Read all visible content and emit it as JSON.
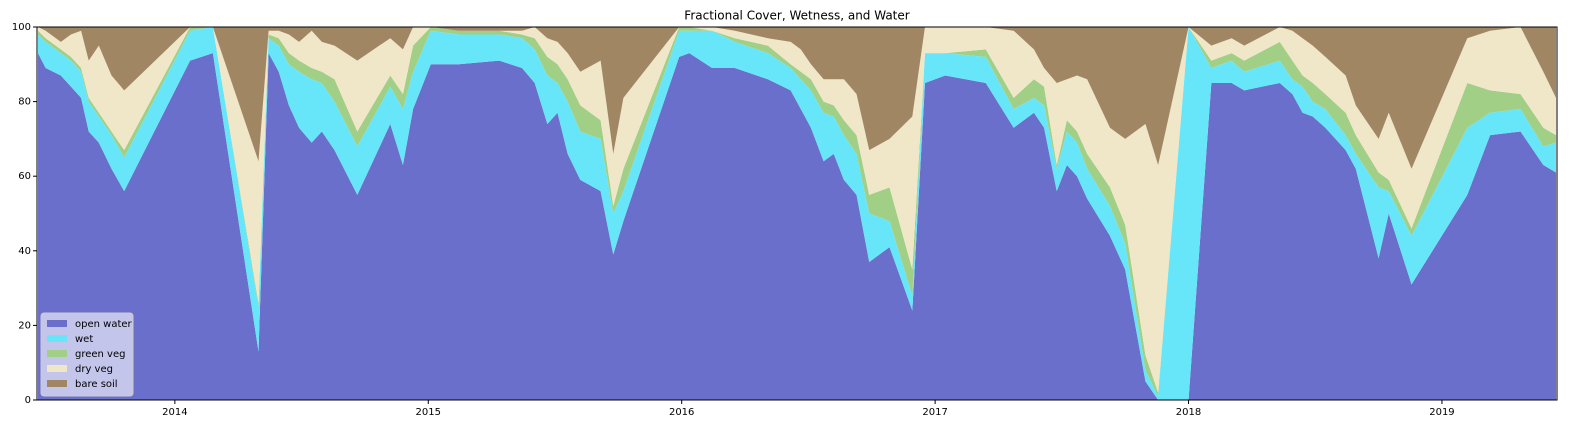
{
  "chart_data": {
    "type": "stacked_area",
    "title": "Fractional Cover, Wetness, and Water",
    "x": [
      2013.46,
      2013.49,
      2013.55,
      2013.59,
      2013.63,
      2013.66,
      2013.7,
      2013.75,
      2013.8,
      2014.06,
      2014.15,
      2014.33,
      2014.37,
      2014.41,
      2014.45,
      2014.49,
      2014.54,
      2014.58,
      2014.63,
      2014.72,
      2014.85,
      2014.9,
      2014.94,
      2015.01,
      2015.12,
      2015.28,
      2015.37,
      2015.42,
      2015.47,
      2015.51,
      2015.55,
      2015.6,
      2015.68,
      2015.73,
      2015.77,
      2015.99,
      2016.03,
      2016.12,
      2016.21,
      2016.34,
      2016.43,
      2016.47,
      2016.51,
      2016.56,
      2016.6,
      2016.64,
      2016.69,
      2016.74,
      2016.82,
      2016.91,
      2016.96,
      2017.04,
      2017.2,
      2017.31,
      2017.39,
      2017.43,
      2017.48,
      2017.52,
      2017.56,
      2017.6,
      2017.69,
      2017.75,
      2017.83,
      2017.88,
      2018.0,
      2018.09,
      2018.17,
      2018.22,
      2018.36,
      2018.41,
      2018.45,
      2018.49,
      2018.54,
      2018.62,
      2018.66,
      2018.75,
      2018.79,
      2018.88,
      2019.1,
      2019.19,
      2019.31,
      2019.4,
      2019.45
    ],
    "series": [
      {
        "name": "open water",
        "color": "#6a6fcb",
        "values": [
          93,
          89,
          87,
          84,
          81,
          72,
          69,
          62,
          56,
          91,
          93,
          13,
          93,
          88,
          79,
          73,
          69,
          72,
          67,
          55,
          74,
          63,
          78,
          90,
          90,
          91,
          89,
          85,
          74,
          77,
          66,
          59,
          56,
          39,
          48,
          92,
          93,
          89,
          89,
          86,
          83,
          78,
          73,
          64,
          66,
          59,
          55,
          37,
          41,
          24,
          85,
          87,
          85,
          73,
          77,
          73,
          56,
          63,
          60,
          54,
          44,
          35,
          5,
          0,
          0,
          85,
          85,
          83,
          85,
          82,
          77,
          76,
          73,
          67,
          62,
          38,
          50,
          31,
          55,
          71,
          72,
          63,
          61
        ]
      },
      {
        "name": "wet",
        "color": "#67e6f9",
        "values": [
          5,
          7,
          6,
          7,
          7,
          8,
          7,
          9,
          9,
          8,
          7,
          12,
          4,
          7,
          11,
          15,
          17,
          13,
          13,
          13,
          10,
          15,
          10,
          9,
          8,
          7,
          8,
          9,
          13,
          8,
          14,
          13,
          14,
          11,
          8,
          7,
          6,
          10,
          7,
          7,
          6,
          8,
          10,
          13,
          10,
          12,
          11,
          13,
          7,
          4,
          8,
          6,
          7,
          5,
          4,
          6,
          6,
          9,
          9,
          8,
          8,
          7,
          3,
          1,
          100,
          4,
          6,
          5,
          6,
          4,
          7,
          4,
          5,
          4,
          4,
          19,
          6,
          13,
          18,
          6,
          6,
          5,
          8
        ]
      },
      {
        "name": "green veg",
        "color": "#a0cf85",
        "values": [
          1,
          1,
          1,
          1,
          1,
          1,
          1,
          1,
          2,
          1,
          0,
          1,
          1,
          2,
          3,
          3,
          3,
          3,
          6,
          4,
          3,
          4,
          7,
          1,
          1,
          1,
          1,
          3,
          5,
          5,
          6,
          7,
          5,
          2,
          6,
          1,
          1,
          0,
          1,
          2,
          1,
          2,
          3,
          3,
          3,
          4,
          5,
          5,
          9,
          7,
          0,
          0,
          2,
          3,
          5,
          5,
          1,
          3,
          3,
          4,
          5,
          5,
          4,
          1,
          0,
          2,
          2,
          3,
          5,
          5,
          3,
          5,
          4,
          6,
          5,
          4,
          3,
          2,
          12,
          6,
          4,
          5,
          2
        ]
      },
      {
        "name": "dry veg",
        "color": "#f0e6c8",
        "values": [
          1,
          2,
          2,
          6,
          10,
          10,
          18,
          15,
          16,
          0,
          0,
          38,
          1,
          2,
          5,
          5,
          10,
          8,
          9,
          19,
          10,
          12,
          5,
          0,
          0,
          0,
          1,
          3,
          5,
          6,
          7,
          9,
          16,
          14,
          19,
          0,
          0,
          1,
          2,
          2,
          6,
          6,
          4,
          6,
          7,
          11,
          11,
          12,
          13,
          41,
          7,
          7,
          6,
          18,
          8,
          5,
          22,
          11,
          15,
          20,
          16,
          23,
          62,
          61,
          0,
          4,
          4,
          4,
          4,
          8,
          10,
          10,
          10,
          10,
          8,
          9,
          18,
          16,
          12,
          16,
          18,
          15,
          10
        ]
      },
      {
        "name": "bare soil",
        "color": "#a18664",
        "values": [
          0,
          1,
          4,
          2,
          1,
          9,
          5,
          13,
          17,
          0,
          0,
          36,
          1,
          1,
          2,
          4,
          1,
          4,
          5,
          9,
          3,
          6,
          0,
          0,
          1,
          1,
          1,
          0,
          3,
          4,
          7,
          12,
          9,
          34,
          19,
          0,
          0,
          0,
          1,
          3,
          4,
          6,
          10,
          14,
          14,
          14,
          18,
          33,
          30,
          24,
          0,
          0,
          0,
          1,
          6,
          11,
          15,
          14,
          13,
          14,
          27,
          30,
          26,
          37,
          0,
          5,
          3,
          5,
          0,
          1,
          3,
          5,
          8,
          13,
          21,
          30,
          23,
          38,
          3,
          1,
          0,
          12,
          19
        ]
      }
    ],
    "xlim": [
      2013.456,
      2019.454
    ],
    "xticks": [
      2014,
      2015,
      2016,
      2017,
      2018,
      2019
    ],
    "ylim": [
      0,
      100
    ],
    "yticks": [
      0,
      20,
      40,
      60,
      80,
      100
    ],
    "legend": "lower left"
  }
}
